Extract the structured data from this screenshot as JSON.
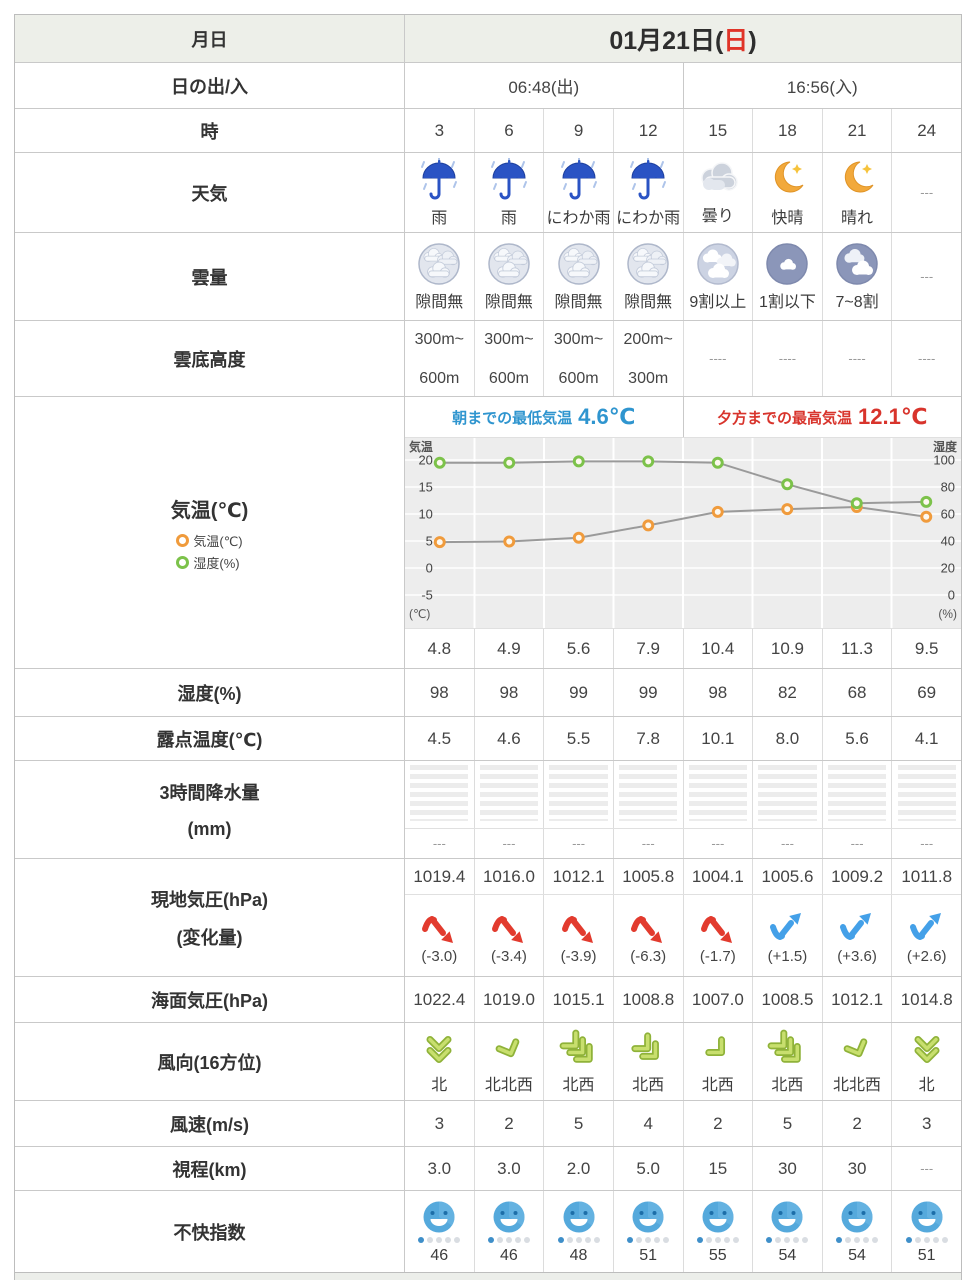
{
  "date_header": {
    "label": "月日",
    "date_prefix": "01月21日(",
    "date_day": "日",
    "date_suffix": ")",
    "day_color": "#e03428"
  },
  "sunrise_row": {
    "label": "日の出/入",
    "sunrise": "06:48(出)",
    "sunset": "16:56(入)"
  },
  "hour_row": {
    "label": "時",
    "values": [
      "3",
      "6",
      "9",
      "12",
      "15",
      "18",
      "21",
      "24"
    ]
  },
  "weather_row": {
    "label": "天気",
    "cells": [
      {
        "icon": "rain-umbrella-icon",
        "text": "雨"
      },
      {
        "icon": "rain-umbrella-icon",
        "text": "雨"
      },
      {
        "icon": "showers-umbrella-icon",
        "text": "にわか雨"
      },
      {
        "icon": "showers-umbrella-icon",
        "text": "にわか雨"
      },
      {
        "icon": "cloudy-icon",
        "text": "曇り"
      },
      {
        "icon": "clear-moon-icon",
        "text": "快晴"
      },
      {
        "icon": "sunny-moon-icon",
        "text": "晴れ"
      },
      {
        "icon": null,
        "text": "---"
      }
    ]
  },
  "cloud_row": {
    "label": "雲量",
    "cells": [
      {
        "icon": "cloud-cover-full-icon",
        "text": "隙間無"
      },
      {
        "icon": "cloud-cover-full-icon",
        "text": "隙間無"
      },
      {
        "icon": "cloud-cover-full-icon",
        "text": "隙間無"
      },
      {
        "icon": "cloud-cover-full-icon",
        "text": "隙間無"
      },
      {
        "icon": "cloud-cover-9-icon",
        "text": "9割以上"
      },
      {
        "icon": "cloud-cover-1-icon",
        "text": "1割以下"
      },
      {
        "icon": "cloud-cover-78-icon",
        "text": "7~8割"
      },
      {
        "icon": null,
        "text": "---"
      }
    ]
  },
  "cloudbase_row": {
    "label": "雲底高度",
    "cells": [
      {
        "line1": "300m~",
        "line2": "600m"
      },
      {
        "line1": "300m~",
        "line2": "600m"
      },
      {
        "line1": "300m~",
        "line2": "600m"
      },
      {
        "line1": "200m~",
        "line2": "300m"
      },
      {
        "dash": "----"
      },
      {
        "dash": "----"
      },
      {
        "dash": "----"
      },
      {
        "dash": "----"
      }
    ]
  },
  "temp_row": {
    "label": "気温(℃)",
    "legend": [
      {
        "name": "気温(℃)",
        "color": "#f09b3c"
      },
      {
        "name": "湿度(%)",
        "color": "#7cc24a"
      }
    ],
    "min_label": "朝までの最低気温",
    "min_value": "4.6℃",
    "max_label": "夕方までの最高気温",
    "max_value": "12.1℃",
    "values": [
      "4.8",
      "4.9",
      "5.6",
      "7.9",
      "10.4",
      "10.9",
      "11.3",
      "9.5"
    ]
  },
  "chart_data": {
    "type": "line",
    "x": [
      3,
      6,
      9,
      12,
      15,
      18,
      21,
      24
    ],
    "series": [
      {
        "name": "気温(℃)",
        "color": "#f09b3c",
        "axis": "left",
        "values": [
          4.8,
          4.9,
          5.6,
          7.9,
          10.4,
          10.9,
          11.3,
          9.5
        ]
      },
      {
        "name": "湿度(%)",
        "color": "#7cc24a",
        "axis": "right",
        "values": [
          98,
          98,
          99,
          99,
          98,
          82,
          68,
          69
        ]
      }
    ],
    "left_axis": {
      "label": "気温",
      "unit": "(℃)",
      "ticks": [
        20,
        15,
        10,
        5,
        0,
        -5
      ]
    },
    "right_axis": {
      "label": "湿度",
      "unit": "(%)",
      "ticks": [
        100,
        80,
        60,
        40,
        20,
        0
      ]
    },
    "grid": true,
    "line_color": "#9a9a9a",
    "bg_color": "#ededed"
  },
  "humidity_row": {
    "label": "湿度(%)",
    "values": [
      "98",
      "98",
      "99",
      "99",
      "98",
      "82",
      "68",
      "69"
    ]
  },
  "dewpoint_row": {
    "label": "露点温度(℃)",
    "values": [
      "4.5",
      "4.6",
      "5.5",
      "7.8",
      "10.1",
      "8.0",
      "5.6",
      "4.1"
    ]
  },
  "precip_row": {
    "label_line1": "3時間降水量",
    "label_line2": "(mm)",
    "values": [
      "---",
      "---",
      "---",
      "---",
      "---",
      "---",
      "---",
      "---"
    ]
  },
  "pressure_row": {
    "label_line1": "現地気圧(hPa)",
    "label_line2": "(変化量)",
    "values": [
      "1019.4",
      "1016.0",
      "1012.1",
      "1005.8",
      "1004.1",
      "1005.6",
      "1009.2",
      "1011.8"
    ],
    "trends": [
      "down",
      "down",
      "down",
      "down",
      "down",
      "up",
      "up",
      "up"
    ],
    "trend_colors": {
      "down": "#e23b2e",
      "up": "#44a0e8"
    },
    "changes": [
      "(-3.0)",
      "(-3.4)",
      "(-3.9)",
      "(-6.3)",
      "(-1.7)",
      "(+1.5)",
      "(+3.6)",
      "(+2.6)"
    ]
  },
  "sealevel_row": {
    "label": "海面気圧(hPa)",
    "values": [
      "1022.4",
      "1019.0",
      "1015.1",
      "1008.8",
      "1007.0",
      "1008.5",
      "1012.1",
      "1014.8"
    ]
  },
  "winddir_row": {
    "label": "風向(16方位)",
    "cells": [
      {
        "icon": "wind-arrow-icon",
        "dir": "北",
        "angle": 180,
        "chevrons": 2
      },
      {
        "icon": "wind-arrow-icon",
        "dir": "北北西",
        "angle": 157.5,
        "chevrons": 1
      },
      {
        "icon": "wind-arrow-icon",
        "dir": "北西",
        "angle": 135,
        "chevrons": 3
      },
      {
        "icon": "wind-arrow-icon",
        "dir": "北西",
        "angle": 135,
        "chevrons": 2
      },
      {
        "icon": "wind-arrow-icon",
        "dir": "北西",
        "angle": 135,
        "chevrons": 1
      },
      {
        "icon": "wind-arrow-icon",
        "dir": "北西",
        "angle": 135,
        "chevrons": 3
      },
      {
        "icon": "wind-arrow-icon",
        "dir": "北北西",
        "angle": 157.5,
        "chevrons": 1
      },
      {
        "icon": "wind-arrow-icon",
        "dir": "北",
        "angle": 180,
        "chevrons": 2
      }
    ]
  },
  "windspeed_row": {
    "label": "風速(m/s)",
    "values": [
      "3",
      "2",
      "5",
      "4",
      "2",
      "5",
      "2",
      "3"
    ]
  },
  "visibility_row": {
    "label": "視程(km)",
    "values": [
      "3.0",
      "3.0",
      "2.0",
      "5.0",
      "15",
      "30",
      "30",
      "---"
    ]
  },
  "discomfort_row": {
    "label": "不快指数",
    "icon": "discomfort-face-icon",
    "values": [
      "46",
      "46",
      "48",
      "51",
      "55",
      "54",
      "54",
      "51"
    ]
  }
}
